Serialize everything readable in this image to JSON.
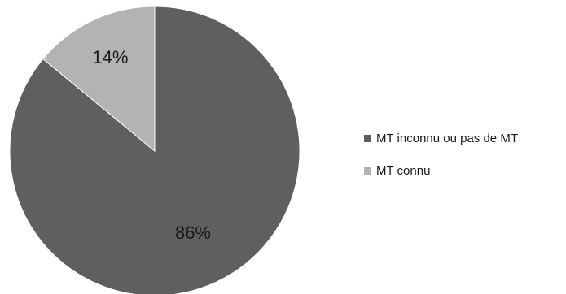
{
  "chart_data": {
    "type": "pie",
    "slices": [
      {
        "name": "MT inconnu ou pas de MT",
        "value": 86,
        "label": "86%",
        "color": "#5f5f5f"
      },
      {
        "name": "MT connu",
        "value": 14,
        "label": "14%",
        "color": "#b3b3b3"
      }
    ],
    "legend_position": "right"
  }
}
